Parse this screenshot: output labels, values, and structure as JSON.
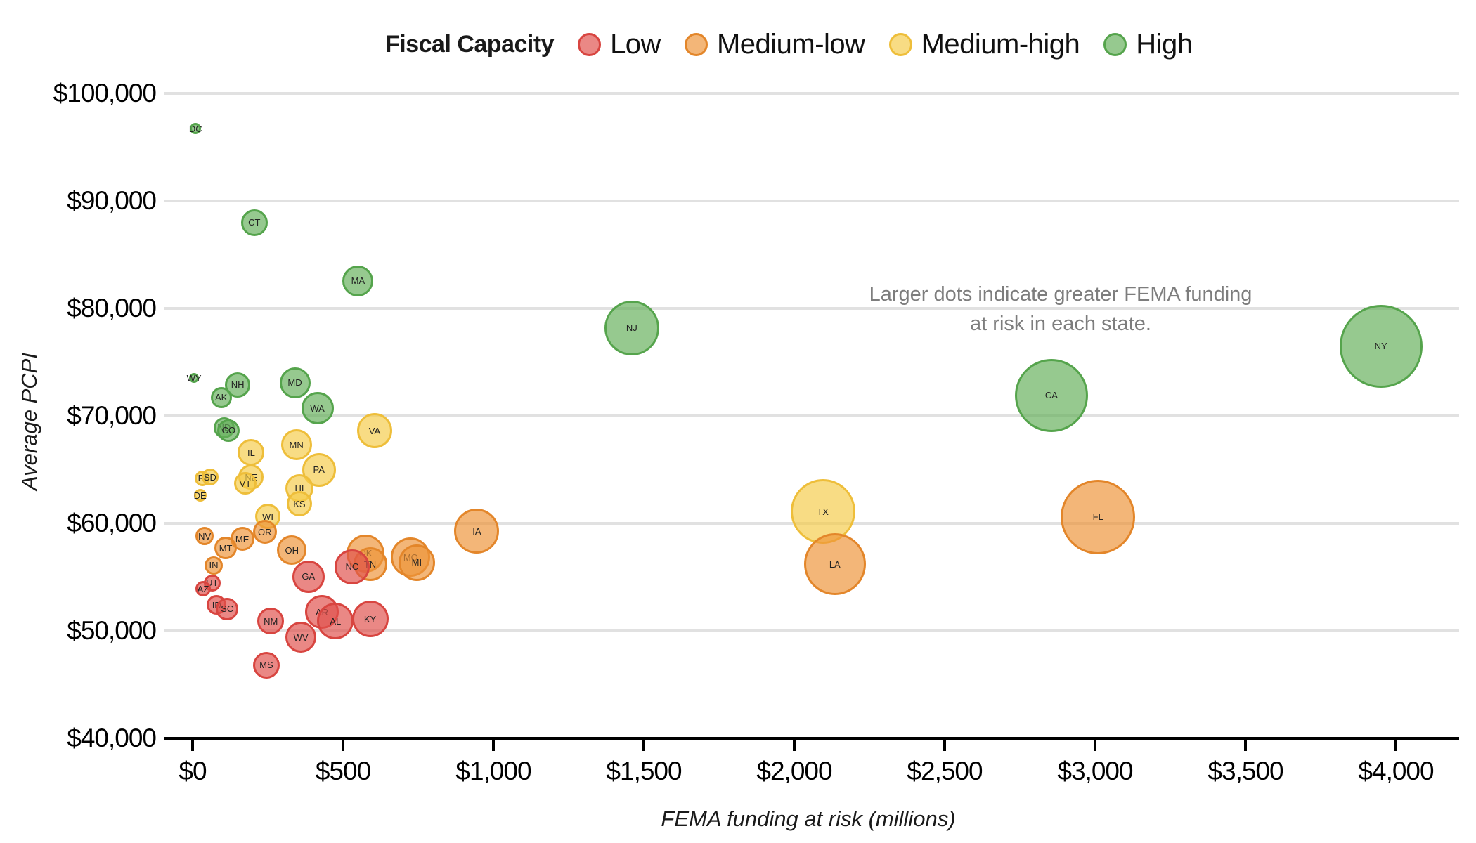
{
  "legend": {
    "title": "Fiscal Capacity",
    "items": [
      {
        "key": "low",
        "label": "Low",
        "stroke": "#d84540",
        "fill": "rgba(224,80,75,0.68)"
      },
      {
        "key": "medium-low",
        "label": "Medium-low",
        "stroke": "#e3862a",
        "fill": "rgba(238,148,56,0.68)"
      },
      {
        "key": "medium-high",
        "label": "Medium-high",
        "stroke": "#eebe3a",
        "fill": "rgba(245,203,74,0.68)"
      },
      {
        "key": "high",
        "label": "High",
        "stroke": "#55a44c",
        "fill": "rgba(100,176,90,0.68)"
      }
    ]
  },
  "annotation": {
    "line1": "Larger dots indicate greater FEMA funding",
    "line2": "at risk in each state."
  },
  "chart_data": {
    "type": "scatter",
    "subtype": "bubble",
    "title": "",
    "xlabel": "FEMA funding at risk (millions)",
    "ylabel": "Average PCPI",
    "xlim": [
      0,
      4200
    ],
    "ylim": [
      40000,
      100000
    ],
    "grid": "horizontal",
    "legend_position": "top",
    "size_meaning": "bubble size = FEMA funding at risk in each state",
    "x_ticks": [
      {
        "value": 0,
        "label": "$0"
      },
      {
        "value": 500,
        "label": "$500"
      },
      {
        "value": 1000,
        "label": "$1,000"
      },
      {
        "value": 1500,
        "label": "$1,500"
      },
      {
        "value": 2000,
        "label": "$2,000"
      },
      {
        "value": 2500,
        "label": "$2,500"
      },
      {
        "value": 3000,
        "label": "$3,000"
      },
      {
        "value": 3500,
        "label": "$3,500"
      },
      {
        "value": 4000,
        "label": "$4,000"
      }
    ],
    "y_ticks": [
      {
        "value": 100000,
        "label": "$100,000"
      },
      {
        "value": 90000,
        "label": "$90,000"
      },
      {
        "value": 80000,
        "label": "$80,000"
      },
      {
        "value": 70000,
        "label": "$70,000"
      },
      {
        "value": 60000,
        "label": "$60,000"
      },
      {
        "value": 50000,
        "label": "$50,000"
      },
      {
        "value": 40000,
        "label": "$40,000"
      }
    ],
    "points": [
      {
        "state": "DC",
        "x": 10,
        "y": 96700,
        "fiscal_capacity": "High",
        "r": 8
      },
      {
        "state": "WY",
        "x": 5,
        "y": 73500,
        "fiscal_capacity": "High",
        "r": 7
      },
      {
        "state": "CT",
        "x": 205,
        "y": 88000,
        "fiscal_capacity": "High",
        "r": 19
      },
      {
        "state": "MA",
        "x": 550,
        "y": 82550,
        "fiscal_capacity": "High",
        "r": 22
      },
      {
        "state": "NJ",
        "x": 1460,
        "y": 78200,
        "fiscal_capacity": "High",
        "r": 39
      },
      {
        "state": "NY",
        "x": 3950,
        "y": 76500,
        "fiscal_capacity": "High",
        "r": 59
      },
      {
        "state": "CA",
        "x": 2855,
        "y": 71900,
        "fiscal_capacity": "High",
        "r": 52
      },
      {
        "state": "NH",
        "x": 150,
        "y": 72900,
        "fiscal_capacity": "High",
        "r": 18
      },
      {
        "state": "AK",
        "x": 95,
        "y": 71700,
        "fiscal_capacity": "High",
        "r": 15
      },
      {
        "state": "MD",
        "x": 340,
        "y": 73100,
        "fiscal_capacity": "High",
        "r": 22
      },
      {
        "state": "WA",
        "x": 415,
        "y": 70700,
        "fiscal_capacity": "High",
        "r": 23
      },
      {
        "state": "ND",
        "x": 105,
        "y": 68900,
        "fiscal_capacity": "High",
        "r": 15
      },
      {
        "state": "CO",
        "x": 120,
        "y": 68650,
        "fiscal_capacity": "High",
        "r": 16
      },
      {
        "state": "VA",
        "x": 605,
        "y": 68600,
        "fiscal_capacity": "Medium-high",
        "r": 25
      },
      {
        "state": "MN",
        "x": 345,
        "y": 67300,
        "fiscal_capacity": "Medium-high",
        "r": 22
      },
      {
        "state": "IL",
        "x": 195,
        "y": 66600,
        "fiscal_capacity": "Medium-high",
        "r": 19
      },
      {
        "state": "PA",
        "x": 420,
        "y": 65000,
        "fiscal_capacity": "Medium-high",
        "r": 24
      },
      {
        "state": "RI",
        "x": 33,
        "y": 64200,
        "fiscal_capacity": "Medium-high",
        "r": 11
      },
      {
        "state": "SD",
        "x": 58,
        "y": 64300,
        "fiscal_capacity": "Medium-high",
        "r": 12
      },
      {
        "state": "NE",
        "x": 195,
        "y": 64300,
        "fiscal_capacity": "Medium-high",
        "r": 18
      },
      {
        "state": "VT",
        "x": 175,
        "y": 63700,
        "fiscal_capacity": "Medium-high",
        "r": 16
      },
      {
        "state": "HI",
        "x": 355,
        "y": 63300,
        "fiscal_capacity": "Medium-high",
        "r": 20
      },
      {
        "state": "DE",
        "x": 25,
        "y": 62600,
        "fiscal_capacity": "Medium-high",
        "r": 9
      },
      {
        "state": "KS",
        "x": 355,
        "y": 61800,
        "fiscal_capacity": "Medium-high",
        "r": 18
      },
      {
        "state": "WI",
        "x": 250,
        "y": 60650,
        "fiscal_capacity": "Medium-high",
        "r": 18
      },
      {
        "state": "TX",
        "x": 2095,
        "y": 61100,
        "fiscal_capacity": "Medium-high",
        "r": 46
      },
      {
        "state": "OR",
        "x": 240,
        "y": 59200,
        "fiscal_capacity": "Medium-low",
        "r": 17
      },
      {
        "state": "NV",
        "x": 40,
        "y": 58800,
        "fiscal_capacity": "Medium-low",
        "r": 13
      },
      {
        "state": "ME",
        "x": 165,
        "y": 58550,
        "fiscal_capacity": "Medium-low",
        "r": 17
      },
      {
        "state": "MT",
        "x": 110,
        "y": 57700,
        "fiscal_capacity": "Medium-low",
        "r": 16
      },
      {
        "state": "IN",
        "x": 70,
        "y": 56100,
        "fiscal_capacity": "Medium-low",
        "r": 13
      },
      {
        "state": "OH",
        "x": 330,
        "y": 57500,
        "fiscal_capacity": "Medium-low",
        "r": 21
      },
      {
        "state": "IA",
        "x": 945,
        "y": 59250,
        "fiscal_capacity": "Medium-low",
        "r": 32
      },
      {
        "state": "OK",
        "x": 575,
        "y": 57200,
        "fiscal_capacity": "Medium-low",
        "r": 27
      },
      {
        "state": "TN",
        "x": 590,
        "y": 56200,
        "fiscal_capacity": "Medium-low",
        "r": 24
      },
      {
        "state": "MO",
        "x": 725,
        "y": 56850,
        "fiscal_capacity": "Medium-low",
        "r": 28
      },
      {
        "state": "MI",
        "x": 745,
        "y": 56350,
        "fiscal_capacity": "Medium-low",
        "r": 26
      },
      {
        "state": "FL",
        "x": 3010,
        "y": 60600,
        "fiscal_capacity": "Medium-low",
        "r": 53
      },
      {
        "state": "LA",
        "x": 2135,
        "y": 56200,
        "fiscal_capacity": "Medium-low",
        "r": 44
      },
      {
        "state": "GA",
        "x": 385,
        "y": 55050,
        "fiscal_capacity": "Low",
        "r": 23
      },
      {
        "state": "NC",
        "x": 530,
        "y": 55950,
        "fiscal_capacity": "Low",
        "r": 25
      },
      {
        "state": "UT",
        "x": 65,
        "y": 54450,
        "fiscal_capacity": "Low",
        "r": 12
      },
      {
        "state": "AZ",
        "x": 35,
        "y": 53900,
        "fiscal_capacity": "Low",
        "r": 11
      },
      {
        "state": "ID",
        "x": 80,
        "y": 52400,
        "fiscal_capacity": "Low",
        "r": 14
      },
      {
        "state": "SC",
        "x": 115,
        "y": 52050,
        "fiscal_capacity": "Low",
        "r": 16
      },
      {
        "state": "NM",
        "x": 260,
        "y": 50900,
        "fiscal_capacity": "Low",
        "r": 19
      },
      {
        "state": "AR",
        "x": 430,
        "y": 51750,
        "fiscal_capacity": "Low",
        "r": 24
      },
      {
        "state": "AL",
        "x": 475,
        "y": 50900,
        "fiscal_capacity": "Low",
        "r": 26
      },
      {
        "state": "KY",
        "x": 590,
        "y": 51100,
        "fiscal_capacity": "Low",
        "r": 26
      },
      {
        "state": "WV",
        "x": 360,
        "y": 49400,
        "fiscal_capacity": "Low",
        "r": 22
      },
      {
        "state": "MS",
        "x": 245,
        "y": 46800,
        "fiscal_capacity": "Low",
        "r": 19
      }
    ]
  }
}
